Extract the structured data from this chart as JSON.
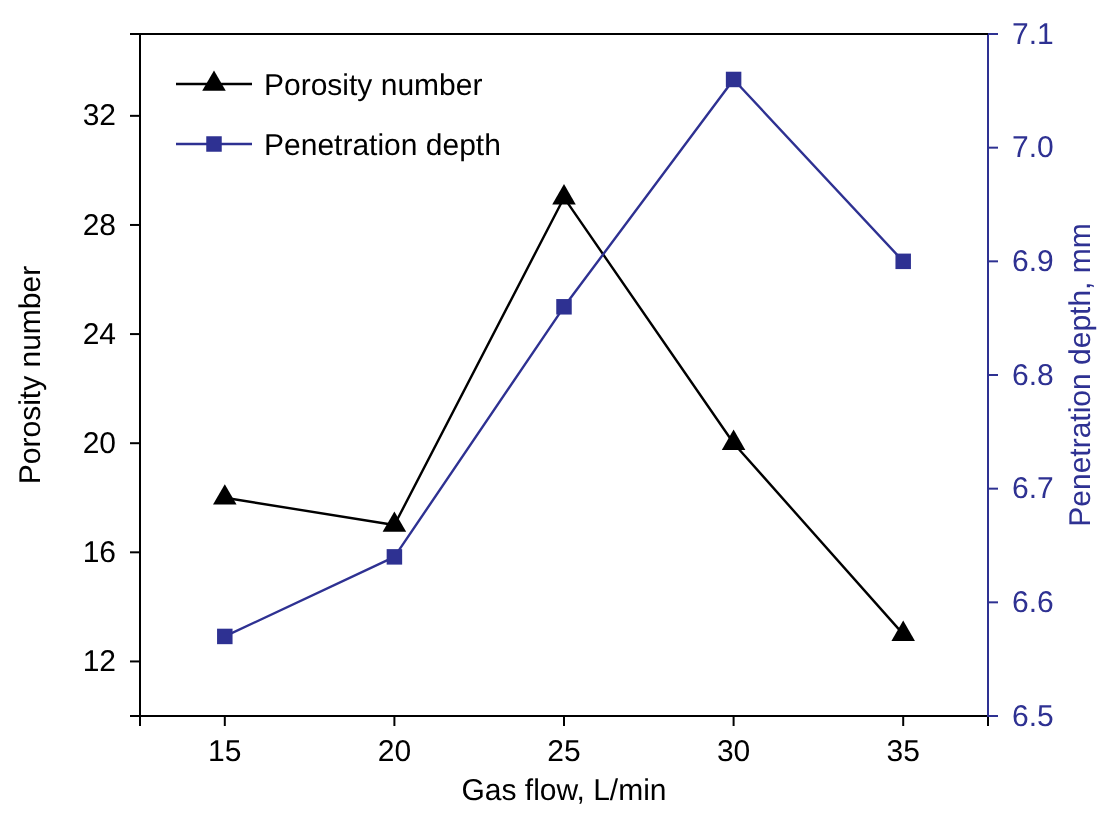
{
  "chart_data": {
    "type": "line",
    "xlabel": "Gas flow, L/min",
    "ylabel": "Porosity number",
    "y2label": "Penetration depth, mm",
    "x": [
      15,
      20,
      25,
      30,
      35
    ],
    "xlim": [
      12.5,
      37.5
    ],
    "xticks": [
      15,
      20,
      25,
      30,
      35
    ],
    "ylim": [
      10,
      35
    ],
    "yticks": [
      12,
      16,
      20,
      24,
      28,
      32
    ],
    "y2lim": [
      6.5,
      7.1
    ],
    "y2ticks": [
      {
        "value": 6.5,
        "label": "6.5"
      },
      6.6,
      6.7,
      6.8,
      6.9,
      {
        "value": 7.0,
        "label": "7.0"
      },
      7.1
    ],
    "legend": "top left",
    "grid": false,
    "line_style": "solid",
    "series": [
      {
        "name": "Porosity number",
        "color": "#000000",
        "marker": "triangle",
        "values": [
          18,
          17,
          29,
          20,
          13
        ]
      },
      {
        "name": "Penetration depth",
        "color": "#2e3192",
        "marker": "square",
        "axis": "y2",
        "values": [
          6.57,
          6.64,
          6.86,
          7.06,
          6.9
        ]
      }
    ]
  }
}
